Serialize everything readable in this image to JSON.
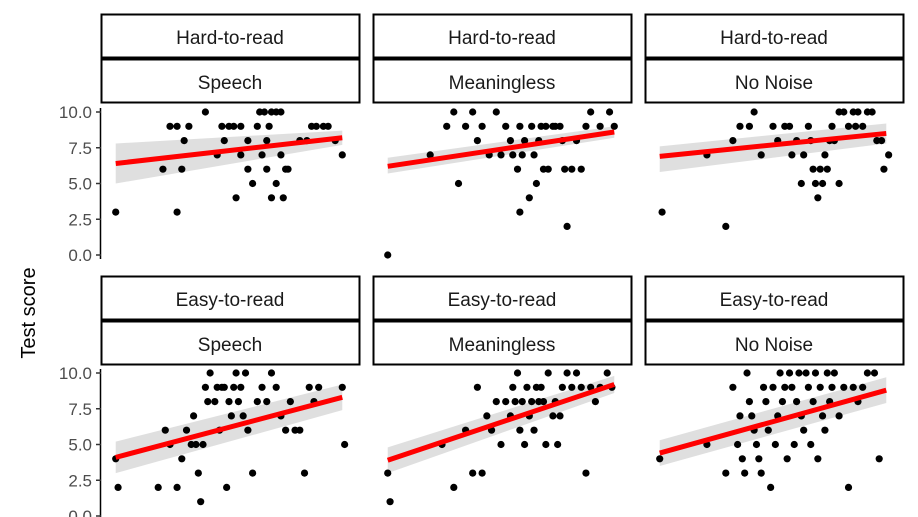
{
  "y_axis_title": "Test score",
  "y_ticks": [
    "0.0",
    "2.5",
    "5.0",
    "7.5",
    "10.0"
  ],
  "colors": {
    "fit_line": "#ff0000",
    "confidence_band": "#d9d9d9",
    "points": "#000000",
    "strip_border": "#000000"
  },
  "chart_data": [
    {
      "type": "scatter",
      "strip_top": "Hard-to-read",
      "strip_bottom": "Speech",
      "ylim": [
        0,
        10
      ],
      "xlim": [
        0,
        1
      ],
      "fit": {
        "y_start": 6.4,
        "y_end": 8.2,
        "band_lower_start": 5.0,
        "band_upper_start": 7.8,
        "band_lower_end": 7.7,
        "band_upper_end": 8.7
      },
      "points": [
        [
          0.02,
          3
        ],
        [
          0.28,
          3
        ],
        [
          0.22,
          6
        ],
        [
          0.25,
          9
        ],
        [
          0.28,
          9
        ],
        [
          0.33,
          9
        ],
        [
          0.31,
          8
        ],
        [
          0.3,
          6
        ],
        [
          0.4,
          10
        ],
        [
          0.45,
          7
        ],
        [
          0.47,
          9
        ],
        [
          0.5,
          9
        ],
        [
          0.52,
          9
        ],
        [
          0.48,
          8
        ],
        [
          0.55,
          9
        ],
        [
          0.55,
          7
        ],
        [
          0.53,
          4
        ],
        [
          0.58,
          8
        ],
        [
          0.58,
          6
        ],
        [
          0.6,
          5
        ],
        [
          0.62,
          9
        ],
        [
          0.63,
          10
        ],
        [
          0.64,
          7
        ],
        [
          0.65,
          10
        ],
        [
          0.66,
          8
        ],
        [
          0.67,
          9
        ],
        [
          0.68,
          10
        ],
        [
          0.7,
          10
        ],
        [
          0.72,
          10
        ],
        [
          0.66,
          6
        ],
        [
          0.68,
          4
        ],
        [
          0.7,
          5
        ],
        [
          0.72,
          7
        ],
        [
          0.74,
          6
        ],
        [
          0.73,
          4
        ],
        [
          0.75,
          6
        ],
        [
          0.8,
          8
        ],
        [
          0.83,
          8
        ],
        [
          0.85,
          9
        ],
        [
          0.87,
          9
        ],
        [
          0.9,
          9
        ],
        [
          0.92,
          9
        ],
        [
          0.95,
          8
        ],
        [
          0.98,
          7
        ]
      ]
    },
    {
      "type": "scatter",
      "strip_top": "Hard-to-read",
      "strip_bottom": "Meaningless",
      "ylim": [
        0,
        10
      ],
      "xlim": [
        0,
        1
      ],
      "fit": {
        "y_start": 6.2,
        "y_end": 8.6,
        "band_lower_start": 5.7,
        "band_upper_start": 6.8,
        "band_lower_end": 8.2,
        "band_upper_end": 9.0
      },
      "points": [
        [
          0.02,
          0
        ],
        [
          0.2,
          7
        ],
        [
          0.32,
          5
        ],
        [
          0.27,
          9
        ],
        [
          0.3,
          10
        ],
        [
          0.35,
          9
        ],
        [
          0.38,
          10
        ],
        [
          0.42,
          9
        ],
        [
          0.4,
          8
        ],
        [
          0.45,
          7
        ],
        [
          0.48,
          10
        ],
        [
          0.5,
          7
        ],
        [
          0.52,
          9
        ],
        [
          0.54,
          8
        ],
        [
          0.55,
          7
        ],
        [
          0.57,
          6
        ],
        [
          0.58,
          9
        ],
        [
          0.59,
          7
        ],
        [
          0.6,
          8
        ],
        [
          0.62,
          4
        ],
        [
          0.58,
          3
        ],
        [
          0.63,
          9
        ],
        [
          0.64,
          7
        ],
        [
          0.65,
          5
        ],
        [
          0.66,
          8
        ],
        [
          0.67,
          9
        ],
        [
          0.68,
          6
        ],
        [
          0.69,
          9
        ],
        [
          0.7,
          6
        ],
        [
          0.72,
          9
        ],
        [
          0.73,
          9
        ],
        [
          0.75,
          9
        ],
        [
          0.76,
          8
        ],
        [
          0.77,
          6
        ],
        [
          0.78,
          2
        ],
        [
          0.8,
          6
        ],
        [
          0.82,
          8
        ],
        [
          0.84,
          6
        ],
        [
          0.86,
          9
        ],
        [
          0.88,
          10
        ],
        [
          0.92,
          9
        ],
        [
          0.96,
          10
        ],
        [
          0.98,
          9
        ]
      ]
    },
    {
      "type": "scatter",
      "strip_top": "Hard-to-read",
      "strip_bottom": "No Noise",
      "ylim": [
        0,
        10
      ],
      "xlim": [
        0,
        1
      ],
      "fit": {
        "y_start": 6.9,
        "y_end": 8.5,
        "band_lower_start": 5.8,
        "band_upper_start": 7.6,
        "band_lower_end": 7.8,
        "band_upper_end": 9.2
      },
      "points": [
        [
          0.03,
          3
        ],
        [
          0.22,
          7
        ],
        [
          0.3,
          2
        ],
        [
          0.33,
          8
        ],
        [
          0.36,
          9
        ],
        [
          0.4,
          9
        ],
        [
          0.42,
          10
        ],
        [
          0.45,
          7
        ],
        [
          0.5,
          9
        ],
        [
          0.52,
          8
        ],
        [
          0.55,
          9
        ],
        [
          0.57,
          9
        ],
        [
          0.58,
          7
        ],
        [
          0.6,
          8
        ],
        [
          0.62,
          5
        ],
        [
          0.63,
          7
        ],
        [
          0.65,
          9
        ],
        [
          0.66,
          8
        ],
        [
          0.67,
          6
        ],
        [
          0.68,
          5
        ],
        [
          0.69,
          4
        ],
        [
          0.7,
          6
        ],
        [
          0.71,
          5
        ],
        [
          0.72,
          7
        ],
        [
          0.73,
          6
        ],
        [
          0.74,
          8
        ],
        [
          0.75,
          9
        ],
        [
          0.76,
          8
        ],
        [
          0.78,
          5
        ],
        [
          0.78,
          10
        ],
        [
          0.8,
          10
        ],
        [
          0.82,
          9
        ],
        [
          0.84,
          10
        ],
        [
          0.85,
          9
        ],
        [
          0.86,
          10
        ],
        [
          0.88,
          9
        ],
        [
          0.9,
          10
        ],
        [
          0.92,
          10
        ],
        [
          0.94,
          8
        ],
        [
          0.96,
          8
        ],
        [
          0.97,
          6
        ],
        [
          0.99,
          7
        ]
      ]
    },
    {
      "type": "scatter",
      "strip_top": "Easy-to-read",
      "strip_bottom": "Speech",
      "ylim": [
        0,
        10
      ],
      "xlim": [
        0,
        1
      ],
      "fit": {
        "y_start": 4.1,
        "y_end": 8.3,
        "band_lower_start": 3.0,
        "band_upper_start": 5.2,
        "band_lower_end": 7.4,
        "band_upper_end": 9.2
      },
      "points": [
        [
          0.02,
          4
        ],
        [
          0.03,
          2
        ],
        [
          0.2,
          2
        ],
        [
          0.23,
          6
        ],
        [
          0.25,
          5
        ],
        [
          0.28,
          2
        ],
        [
          0.3,
          4
        ],
        [
          0.32,
          6
        ],
        [
          0.34,
          5
        ],
        [
          0.35,
          7
        ],
        [
          0.36,
          5
        ],
        [
          0.37,
          3
        ],
        [
          0.38,
          1
        ],
        [
          0.39,
          5
        ],
        [
          0.4,
          9
        ],
        [
          0.41,
          8
        ],
        [
          0.42,
          10
        ],
        [
          0.44,
          8
        ],
        [
          0.45,
          9
        ],
        [
          0.46,
          6
        ],
        [
          0.47,
          9
        ],
        [
          0.48,
          9
        ],
        [
          0.49,
          2
        ],
        [
          0.5,
          8
        ],
        [
          0.51,
          7
        ],
        [
          0.52,
          9
        ],
        [
          0.53,
          10
        ],
        [
          0.54,
          8
        ],
        [
          0.55,
          9
        ],
        [
          0.56,
          7
        ],
        [
          0.57,
          10
        ],
        [
          0.58,
          6
        ],
        [
          0.6,
          3
        ],
        [
          0.62,
          8
        ],
        [
          0.64,
          9
        ],
        [
          0.66,
          8
        ],
        [
          0.68,
          10
        ],
        [
          0.7,
          9
        ],
        [
          0.72,
          7
        ],
        [
          0.74,
          6
        ],
        [
          0.76,
          8
        ],
        [
          0.78,
          6
        ],
        [
          0.8,
          6
        ],
        [
          0.82,
          3
        ],
        [
          0.84,
          9
        ],
        [
          0.86,
          8
        ],
        [
          0.88,
          9
        ],
        [
          0.98,
          9
        ],
        [
          0.99,
          5
        ]
      ]
    },
    {
      "type": "scatter",
      "strip_top": "Easy-to-read",
      "strip_bottom": "Meaningless",
      "ylim": [
        0,
        10
      ],
      "xlim": [
        0,
        1
      ],
      "fit": {
        "y_start": 3.9,
        "y_end": 9.2,
        "band_lower_start": 3.0,
        "band_upper_start": 4.8,
        "band_lower_end": 8.6,
        "band_upper_end": 9.8
      },
      "points": [
        [
          0.02,
          3
        ],
        [
          0.03,
          1
        ],
        [
          0.25,
          5
        ],
        [
          0.3,
          2
        ],
        [
          0.35,
          6
        ],
        [
          0.38,
          3
        ],
        [
          0.4,
          9
        ],
        [
          0.42,
          3
        ],
        [
          0.44,
          7
        ],
        [
          0.46,
          6
        ],
        [
          0.48,
          8
        ],
        [
          0.5,
          5
        ],
        [
          0.52,
          8
        ],
        [
          0.54,
          7
        ],
        [
          0.55,
          9
        ],
        [
          0.56,
          8
        ],
        [
          0.57,
          10
        ],
        [
          0.58,
          6
        ],
        [
          0.59,
          8
        ],
        [
          0.6,
          5
        ],
        [
          0.61,
          9
        ],
        [
          0.62,
          7
        ],
        [
          0.63,
          8
        ],
        [
          0.64,
          6
        ],
        [
          0.65,
          9
        ],
        [
          0.66,
          8
        ],
        [
          0.67,
          9
        ],
        [
          0.68,
          8
        ],
        [
          0.69,
          5
        ],
        [
          0.7,
          10
        ],
        [
          0.72,
          7
        ],
        [
          0.73,
          8
        ],
        [
          0.74,
          5
        ],
        [
          0.75,
          7
        ],
        [
          0.76,
          9
        ],
        [
          0.78,
          10
        ],
        [
          0.8,
          9
        ],
        [
          0.82,
          10
        ],
        [
          0.84,
          9
        ],
        [
          0.86,
          3
        ],
        [
          0.88,
          9
        ],
        [
          0.9,
          8
        ],
        [
          0.92,
          9
        ],
        [
          0.95,
          10
        ],
        [
          0.97,
          9
        ]
      ]
    },
    {
      "type": "scatter",
      "strip_top": "Easy-to-read",
      "strip_bottom": "No Noise",
      "ylim": [
        0,
        10
      ],
      "xlim": [
        0,
        1
      ],
      "fit": {
        "y_start": 4.4,
        "y_end": 8.8,
        "band_lower_start": 3.5,
        "band_upper_start": 5.3,
        "band_lower_end": 7.9,
        "band_upper_end": 9.7
      },
      "points": [
        [
          0.02,
          4
        ],
        [
          0.22,
          5
        ],
        [
          0.3,
          3
        ],
        [
          0.33,
          9
        ],
        [
          0.35,
          5
        ],
        [
          0.36,
          7
        ],
        [
          0.37,
          4
        ],
        [
          0.38,
          3
        ],
        [
          0.39,
          10
        ],
        [
          0.4,
          8
        ],
        [
          0.41,
          7
        ],
        [
          0.42,
          6
        ],
        [
          0.43,
          5
        ],
        [
          0.44,
          4
        ],
        [
          0.45,
          3
        ],
        [
          0.46,
          9
        ],
        [
          0.47,
          8
        ],
        [
          0.48,
          6
        ],
        [
          0.49,
          2
        ],
        [
          0.5,
          9
        ],
        [
          0.51,
          5
        ],
        [
          0.52,
          7
        ],
        [
          0.53,
          10
        ],
        [
          0.54,
          8
        ],
        [
          0.55,
          9
        ],
        [
          0.56,
          4
        ],
        [
          0.57,
          10
        ],
        [
          0.58,
          9
        ],
        [
          0.59,
          5
        ],
        [
          0.6,
          8
        ],
        [
          0.61,
          10
        ],
        [
          0.62,
          7
        ],
        [
          0.63,
          6
        ],
        [
          0.64,
          10
        ],
        [
          0.65,
          9
        ],
        [
          0.66,
          5
        ],
        [
          0.67,
          8
        ],
        [
          0.68,
          10
        ],
        [
          0.69,
          4
        ],
        [
          0.7,
          9
        ],
        [
          0.71,
          7
        ],
        [
          0.72,
          6
        ],
        [
          0.73,
          10
        ],
        [
          0.74,
          8
        ],
        [
          0.75,
          9
        ],
        [
          0.76,
          10
        ],
        [
          0.78,
          7
        ],
        [
          0.8,
          9
        ],
        [
          0.82,
          2
        ],
        [
          0.84,
          9
        ],
        [
          0.86,
          8
        ],
        [
          0.88,
          9
        ],
        [
          0.9,
          10
        ],
        [
          0.93,
          10
        ],
        [
          0.95,
          4
        ]
      ]
    }
  ]
}
